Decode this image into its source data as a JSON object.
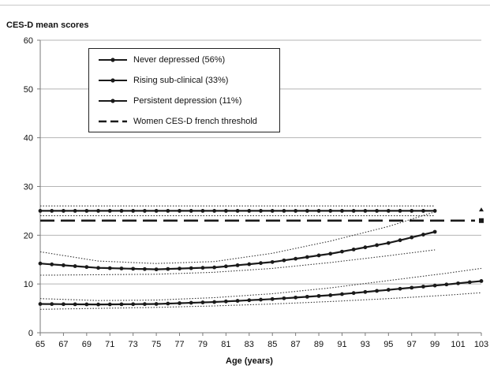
{
  "chart_data": {
    "type": "line",
    "title": "",
    "ylabel": "CES-D mean scores",
    "xlabel": "Age (years)",
    "xlim": [
      65,
      103
    ],
    "ylim": [
      0,
      60
    ],
    "x_ticks": [
      65,
      67,
      69,
      71,
      73,
      75,
      77,
      79,
      81,
      83,
      85,
      87,
      89,
      91,
      93,
      95,
      97,
      99,
      101,
      103
    ],
    "y_ticks": [
      0,
      10,
      20,
      30,
      40,
      50,
      60
    ],
    "grid": "horizontal",
    "legend_position": "top-left",
    "series": [
      {
        "name": "Never depressed (56%)",
        "style": "solid-marker",
        "x": [
          65,
          70,
          75,
          80,
          85,
          90,
          95,
          100,
          103
        ],
        "y": [
          5.9,
          5.8,
          5.9,
          6.3,
          6.9,
          7.7,
          8.8,
          9.9,
          10.6
        ],
        "ci_lower": [
          4.8,
          5.0,
          5.2,
          5.5,
          5.9,
          6.4,
          7.0,
          7.7,
          8.2
        ],
        "ci_upper": [
          7.0,
          6.6,
          6.7,
          7.2,
          8.0,
          9.2,
          10.7,
          12.2,
          13.2
        ]
      },
      {
        "name": "Rising sub-clinical (33%)",
        "style": "solid-marker",
        "x": [
          65,
          70,
          75,
          80,
          85,
          90,
          95,
          99
        ],
        "y": [
          14.2,
          13.3,
          13.0,
          13.4,
          14.5,
          16.2,
          18.4,
          20.7
        ],
        "ci_lower": [
          11.8,
          11.9,
          12.0,
          12.4,
          13.2,
          14.4,
          15.8,
          17.0
        ],
        "ci_upper": [
          16.6,
          14.7,
          14.2,
          14.6,
          16.3,
          18.8,
          21.8,
          24.8
        ]
      },
      {
        "name": "Persistent depression (11%)",
        "style": "solid-marker",
        "x": [
          65,
          70,
          75,
          80,
          85,
          90,
          95,
          99
        ],
        "y": [
          25.0,
          25.0,
          25.0,
          25.0,
          25.0,
          25.0,
          25.0,
          25.0
        ],
        "ci_lower": [
          24.0,
          24.0,
          24.0,
          24.0,
          24.0,
          24.0,
          24.0,
          24.0
        ],
        "ci_upper": [
          26.0,
          26.0,
          26.0,
          26.0,
          26.0,
          26.0,
          26.0,
          26.0
        ]
      },
      {
        "name": "Women CES-D french threshold",
        "style": "dashed",
        "x": [
          65,
          103
        ],
        "y": [
          23,
          23
        ]
      }
    ]
  },
  "legend": {
    "items": [
      {
        "label": "Never depressed (56%)",
        "symbol": "solid-marker"
      },
      {
        "label": "Rising sub-clinical (33%)",
        "symbol": "solid-marker"
      },
      {
        "label": "Persistent depression (11%)",
        "symbol": "solid-marker"
      },
      {
        "label": "Women CES-D french threshold",
        "symbol": "dashed"
      }
    ]
  },
  "colors": {
    "line": "#1a1a1a",
    "grid": "#b4b4b4",
    "ci": "#333333",
    "axis": "#7a7a7a"
  }
}
